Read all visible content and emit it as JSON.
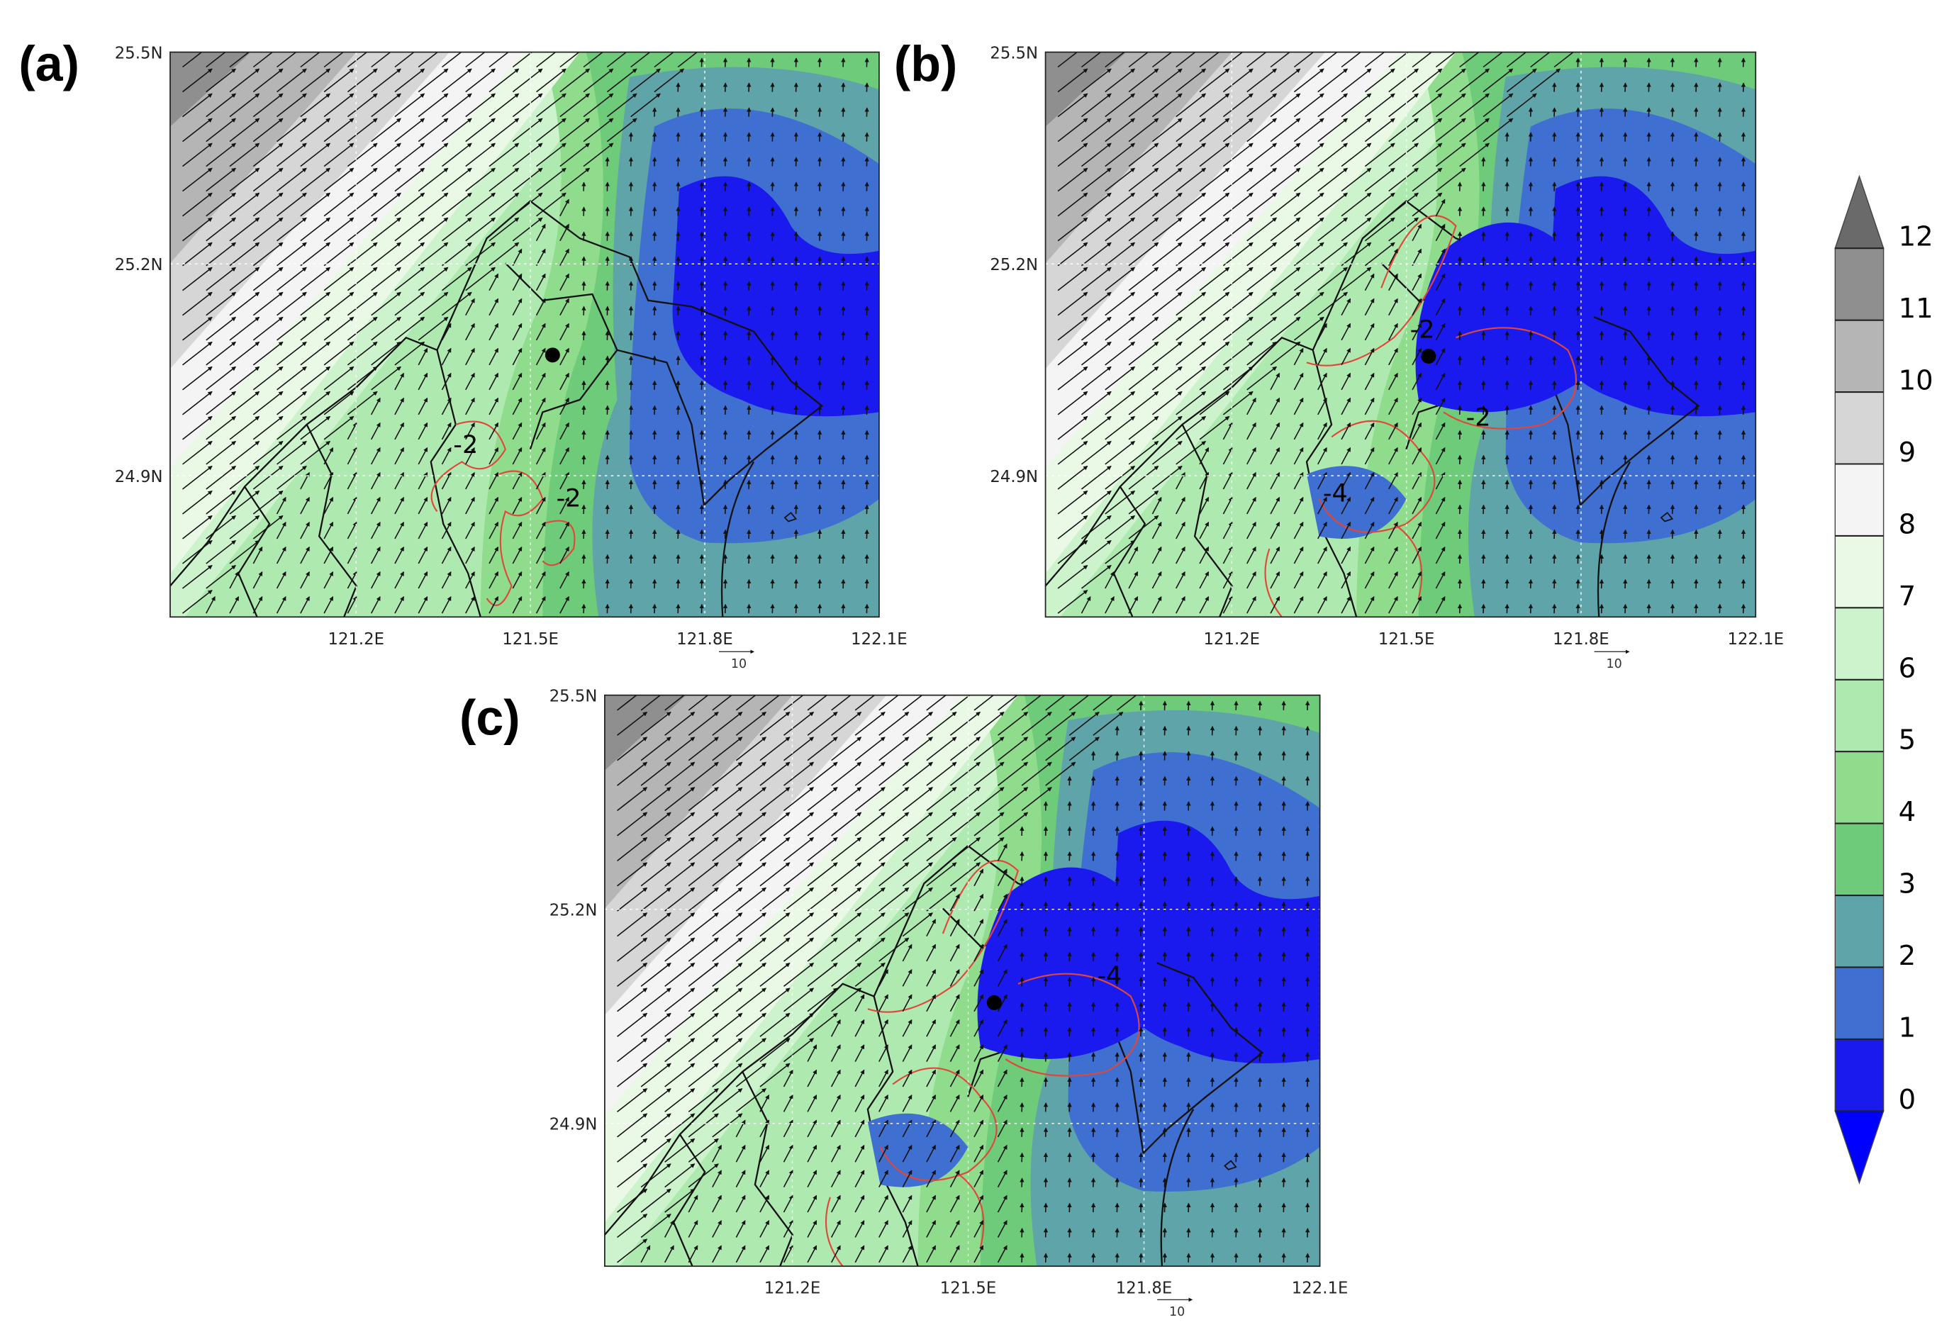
{
  "panels": [
    {
      "label": "(a)",
      "contour_labels": [
        "-2",
        "-2"
      ]
    },
    {
      "label": "(b)",
      "contour_labels": [
        "-2",
        "-2",
        "-4"
      ]
    },
    {
      "label": "(c)",
      "contour_labels": [
        "-4"
      ]
    }
  ],
  "axes": {
    "xlim": [
      120.88,
      122.1
    ],
    "ylim": [
      24.7,
      25.5
    ],
    "xticks": [
      {
        "value": 121.2,
        "label": "121.2E"
      },
      {
        "value": 121.5,
        "label": "121.5E"
      },
      {
        "value": 121.8,
        "label": "121.8E"
      },
      {
        "value": 122.1,
        "label": "122.1E"
      }
    ],
    "yticks": [
      {
        "value": 24.9,
        "label": "24.9N"
      },
      {
        "value": 25.2,
        "label": "25.2N"
      },
      {
        "value": 25.5,
        "label": "25.5N"
      }
    ]
  },
  "reference_vector": 10,
  "colorbar": {
    "levels": [
      0,
      1,
      2,
      3,
      4,
      5,
      6,
      7,
      8,
      9,
      10,
      11,
      12
    ],
    "colors": [
      "#1a1aef",
      "#3f6fd0",
      "#5fa4a8",
      "#6ecb7a",
      "#8fdc8c",
      "#aeeab0",
      "#cdf3cc",
      "#e9f9e6",
      "#f4f4f4",
      "#d6d6d6",
      "#b5b5b5",
      "#8f8f8f"
    ],
    "extend_colors": [
      "#0000ff",
      "#6a6a6a"
    ]
  }
}
